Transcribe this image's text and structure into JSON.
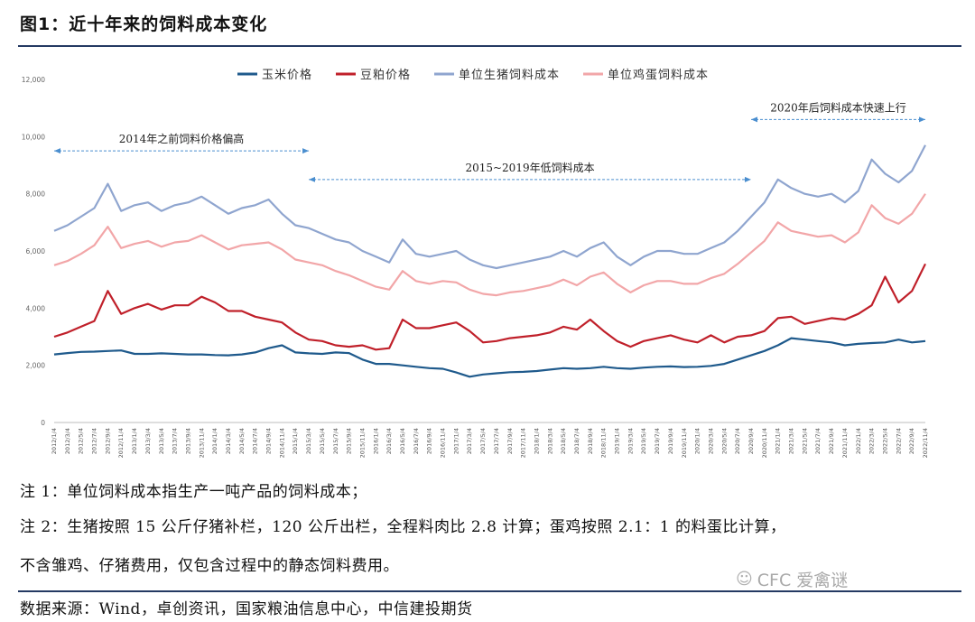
{
  "figure": {
    "title": "图1：近十年来的饲料成本变化",
    "note1": "注 1：单位饲料成本指生产一吨产品的饲料成本；",
    "note2": "注 2：生猪按照 15 公斤仔猪补栏，120 公斤出栏，全程料肉比 2.8 计算；蛋鸡按照 2.1：1 的料蛋比计算，",
    "note3": "不含雏鸡、仔猪费用，仅包含过程中的静态饲料费用。",
    "source": "数据来源：Wind，卓创资讯，国家粮油信息中心，中信建投期货",
    "watermark": "CFC 爱禽谜",
    "watermark_icon": "wechat-icon"
  },
  "chart_data": {
    "type": "line",
    "ylim": [
      0,
      12000
    ],
    "yticks": [
      0,
      2000,
      4000,
      6000,
      8000,
      10000,
      12000
    ],
    "ytick_labels": [
      "0",
      "2,000",
      "4,000",
      "6,000",
      "8,000",
      "10,000",
      "12,000"
    ],
    "grid": false,
    "legend_position": "top",
    "x_labels": [
      "2012/1/4",
      "2012/3/4",
      "2012/5/4",
      "2012/7/4",
      "2012/9/4",
      "2012/11/4",
      "2013/1/4",
      "2013/3/4",
      "2013/5/4",
      "2013/7/4",
      "2013/9/4",
      "2013/11/4",
      "2014/1/4",
      "2014/3/4",
      "2014/5/4",
      "2014/7/4",
      "2014/9/4",
      "2014/11/4",
      "2015/1/4",
      "2015/3/4",
      "2015/5/4",
      "2015/7/4",
      "2015/9/4",
      "2015/11/4",
      "2016/1/4",
      "2016/3/4",
      "2016/5/4",
      "2016/7/4",
      "2016/9/4",
      "2016/11/4",
      "2017/1/4",
      "2017/3/4",
      "2017/5/4",
      "2017/7/4",
      "2017/9/4",
      "2017/11/4",
      "2018/1/4",
      "2018/3/4",
      "2018/5/4",
      "2018/7/4",
      "2018/9/4",
      "2018/11/4",
      "2019/1/4",
      "2019/3/4",
      "2019/5/4",
      "2019/7/4",
      "2019/9/4",
      "2019/11/4",
      "2020/1/4",
      "2020/3/4",
      "2020/5/4",
      "2020/7/4",
      "2020/9/4",
      "2020/11/4",
      "2021/1/4",
      "2021/3/4",
      "2021/5/4",
      "2021/7/4",
      "2021/9/4",
      "2021/11/4",
      "2022/1/4",
      "2022/3/4",
      "2022/5/4",
      "2022/7/4",
      "2022/9/4",
      "2022/11/4"
    ],
    "series": [
      {
        "name": "玉米价格",
        "color": "#1f5a8c",
        "values": [
          2380,
          2430,
          2470,
          2480,
          2500,
          2520,
          2400,
          2400,
          2420,
          2400,
          2380,
          2380,
          2360,
          2350,
          2380,
          2450,
          2600,
          2700,
          2450,
          2420,
          2400,
          2450,
          2430,
          2200,
          2050,
          2050,
          2000,
          1950,
          1900,
          1880,
          1750,
          1600,
          1680,
          1720,
          1760,
          1770,
          1800,
          1850,
          1900,
          1880,
          1900,
          1950,
          1900,
          1880,
          1920,
          1950,
          1960,
          1940,
          1950,
          1980,
          2050,
          2200,
          2350,
          2500,
          2700,
          2950,
          2900,
          2850,
          2800,
          2700,
          2750,
          2780,
          2800,
          2900,
          2800,
          2850
        ]
      },
      {
        "name": "豆粕价格",
        "color": "#c0202a",
        "values": [
          3000,
          3150,
          3350,
          3550,
          4600,
          3800,
          4000,
          4150,
          3950,
          4100,
          4100,
          4400,
          4200,
          3900,
          3900,
          3700,
          3600,
          3500,
          3150,
          2900,
          2850,
          2700,
          2650,
          2700,
          2550,
          2600,
          3600,
          3300,
          3300,
          3400,
          3500,
          3200,
          2800,
          2850,
          2950,
          3000,
          3050,
          3150,
          3350,
          3250,
          3600,
          3200,
          2850,
          2650,
          2850,
          2950,
          3050,
          2900,
          2800,
          3050,
          2800,
          3000,
          3050,
          3200,
          3650,
          3700,
          3450,
          3550,
          3650,
          3600,
          3800,
          4100,
          5100,
          4200,
          4600,
          5550
        ]
      },
      {
        "name": "单位生猪饲料成本",
        "color": "#8fa5cf",
        "values": [
          6700,
          6900,
          7200,
          7500,
          8350,
          7400,
          7600,
          7700,
          7400,
          7600,
          7700,
          7900,
          7600,
          7300,
          7500,
          7600,
          7800,
          7300,
          6900,
          6800,
          6600,
          6400,
          6300,
          6000,
          5800,
          5600,
          6400,
          5900,
          5800,
          5900,
          6000,
          5700,
          5500,
          5400,
          5500,
          5600,
          5700,
          5800,
          6000,
          5800,
          6100,
          6300,
          5800,
          5500,
          5800,
          6000,
          6000,
          5900,
          5900,
          6100,
          6300,
          6700,
          7200,
          7700,
          8500,
          8200,
          8000,
          7900,
          8000,
          7700,
          8100,
          9200,
          8700,
          8400,
          8800,
          9700
        ]
      },
      {
        "name": "单位鸡蛋饲料成本",
        "color": "#f2a6a8",
        "values": [
          5500,
          5650,
          5900,
          6200,
          6850,
          6100,
          6250,
          6350,
          6150,
          6300,
          6350,
          6550,
          6300,
          6050,
          6200,
          6250,
          6300,
          6050,
          5700,
          5600,
          5500,
          5300,
          5150,
          4950,
          4750,
          4650,
          5300,
          4950,
          4850,
          4950,
          4900,
          4650,
          4500,
          4450,
          4550,
          4600,
          4700,
          4800,
          5000,
          4800,
          5100,
          5250,
          4850,
          4550,
          4800,
          4950,
          4950,
          4850,
          4850,
          5050,
          5200,
          5550,
          5950,
          6350,
          7000,
          6700,
          6600,
          6500,
          6550,
          6300,
          6650,
          7600,
          7150,
          6950,
          7300,
          8000
        ]
      }
    ],
    "annotations": [
      {
        "text": "2014年之前饲料价格偏高",
        "x_start": "2012/1/4",
        "x_end": "2015/3/4",
        "y": 9500
      },
      {
        "text": "2015~2019年低饲料成本",
        "x_start": "2015/3/4",
        "x_end": "2020/9/4",
        "y": 8500
      },
      {
        "text": "2020年后饲料成本快速上行",
        "x_start": "2020/9/4",
        "x_end": "2022/11/4",
        "y": 10600
      }
    ]
  }
}
